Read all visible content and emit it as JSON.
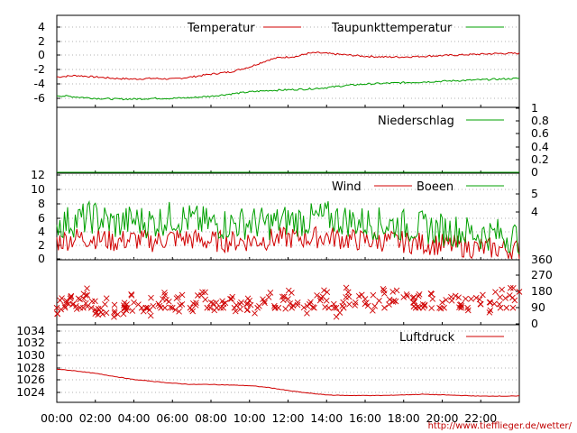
{
  "chart_data": [
    {
      "type": "line",
      "panel": "temperature",
      "ylim": [
        -7,
        5
      ],
      "yticks": [
        "4",
        "2",
        "0",
        "-2",
        "-4",
        "-6"
      ],
      "grid": true,
      "legend_placement": "top",
      "series": [
        {
          "name": "Temperatur",
          "color": "#d00000",
          "x": [
            0,
            1,
            2,
            3,
            4,
            5,
            6,
            7,
            8,
            9,
            10,
            11,
            11.5,
            12,
            12.5,
            13,
            13.5,
            14,
            15,
            16,
            17,
            18,
            19,
            20,
            21,
            22,
            23,
            24
          ],
          "values": [
            -3.0,
            -2.8,
            -3.0,
            -3.2,
            -3.3,
            -3.2,
            -3.3,
            -3.0,
            -2.6,
            -2.3,
            -1.6,
            -0.6,
            -0.3,
            -0.2,
            -0.1,
            0.3,
            0.4,
            0.3,
            0.1,
            -0.1,
            -0.2,
            -0.2,
            -0.1,
            0.0,
            0.1,
            0.2,
            0.3,
            0.3
          ]
        },
        {
          "name": "Taupunkttemperatur",
          "color": "#00a000",
          "x": [
            0,
            1,
            2,
            3,
            4,
            5,
            6,
            7,
            8,
            9,
            10,
            11,
            12,
            13,
            14,
            15,
            16,
            17,
            18,
            19,
            20,
            21,
            22,
            23,
            24
          ],
          "values": [
            -5.6,
            -5.8,
            -6.0,
            -6.1,
            -6.1,
            -6.0,
            -6.0,
            -5.9,
            -5.7,
            -5.4,
            -5.1,
            -4.9,
            -4.8,
            -4.7,
            -4.5,
            -4.2,
            -4.0,
            -3.9,
            -3.8,
            -3.7,
            -3.6,
            -3.5,
            -3.4,
            -3.3,
            -3.2
          ]
        }
      ]
    },
    {
      "type": "line",
      "panel": "precipitation",
      "ylim": [
        0,
        1
      ],
      "yticks_right": [
        "1",
        "0.8",
        "0.6",
        "0.4",
        "0.2",
        "0"
      ],
      "series": [
        {
          "name": "Niederschlag",
          "color": "#00a000",
          "x": [
            0,
            24
          ],
          "values": [
            0,
            0
          ]
        }
      ]
    },
    {
      "type": "line",
      "panel": "wind",
      "ylim": [
        0,
        12
      ],
      "yticks": [
        "12",
        "10",
        "8",
        "6",
        "4",
        "2",
        "0"
      ],
      "yticks_right": [
        "5",
        "4"
      ],
      "series": [
        {
          "name": "Wind",
          "color": "#d00000",
          "x": [
            0,
            1,
            2,
            3,
            4,
            5,
            6,
            7,
            8,
            9,
            10,
            11,
            12,
            13,
            14,
            15,
            16,
            17,
            18,
            19,
            20,
            21,
            22,
            23,
            24
          ],
          "values": [
            2.5,
            3.0,
            3.0,
            2.5,
            2.8,
            2.5,
            3.0,
            2.8,
            2.5,
            2.5,
            2.6,
            2.8,
            3.0,
            3.0,
            3.2,
            2.8,
            2.6,
            2.6,
            2.4,
            2.2,
            2.0,
            1.8,
            1.5,
            1.5,
            1.2
          ]
        },
        {
          "name": "Boeen",
          "color": "#00a000",
          "x": [
            0,
            1,
            2,
            3,
            4,
            5,
            6,
            7,
            8,
            9,
            10,
            11,
            12,
            13,
            14,
            15,
            16,
            17,
            18,
            19,
            20,
            21,
            22,
            23,
            24
          ],
          "values": [
            5.0,
            5.5,
            6.0,
            5.0,
            5.5,
            5.2,
            6.0,
            5.5,
            5.0,
            5.0,
            5.2,
            5.0,
            5.5,
            5.5,
            6.0,
            5.5,
            5.2,
            5.0,
            4.8,
            4.5,
            4.2,
            4.0,
            3.5,
            3.5,
            3.0
          ]
        }
      ]
    },
    {
      "type": "scatter",
      "panel": "wind direction",
      "ylim": [
        0,
        360
      ],
      "yticks_right": [
        "360",
        "270",
        "180",
        "90",
        "0"
      ],
      "marker": "x",
      "series": [
        {
          "color": "#d00000",
          "x": [
            0,
            0.5,
            1,
            1.5,
            2,
            2.5,
            3,
            3.5,
            4,
            4.5,
            5,
            5.5,
            6,
            6.5,
            7,
            7.5,
            8,
            8.5,
            9,
            9.5,
            10,
            10.5,
            11,
            11.5,
            12,
            12.5,
            13,
            13.5,
            14,
            14.5,
            15,
            15.5,
            16,
            16.5,
            17,
            17.5,
            18,
            18.5,
            19,
            19.5,
            20,
            20.5,
            21,
            21.5,
            22,
            22.5,
            23,
            23.5,
            24
          ],
          "values": [
            90,
            130,
            100,
            160,
            80,
            110,
            60,
            90,
            120,
            70,
            100,
            140,
            90,
            110,
            80,
            160,
            120,
            90,
            140,
            110,
            130,
            100,
            150,
            90,
            140,
            120,
            100,
            160,
            130,
            90,
            150,
            120,
            140,
            100,
            170,
            130,
            150,
            120,
            110,
            140,
            120,
            130,
            100,
            140,
            110,
            120,
            150,
            160,
            180
          ]
        }
      ]
    },
    {
      "type": "line",
      "panel": "pressure",
      "ylim": [
        1022,
        1035
      ],
      "yticks": [
        "1034",
        "1032",
        "1030",
        "1028",
        "1026",
        "1024"
      ],
      "series": [
        {
          "name": "Luftdruck",
          "color": "#d00000",
          "x": [
            0,
            1,
            2,
            3,
            4,
            5,
            6,
            7,
            8,
            9,
            10,
            11,
            12,
            13,
            14,
            15,
            16,
            17,
            18,
            19,
            20,
            21,
            22,
            23,
            24
          ],
          "values": [
            1027.8,
            1027.5,
            1027.1,
            1026.6,
            1026.1,
            1025.8,
            1025.5,
            1025.3,
            1025.3,
            1025.2,
            1025.1,
            1024.8,
            1024.3,
            1023.9,
            1023.6,
            1023.5,
            1023.5,
            1023.5,
            1023.6,
            1023.7,
            1023.6,
            1023.5,
            1023.4,
            1023.4,
            1023.4
          ]
        }
      ]
    }
  ],
  "x_axis": {
    "labels": [
      "00:00",
      "02:00",
      "04:00",
      "06:00",
      "08:00",
      "10:00",
      "12:00",
      "14:00",
      "16:00",
      "18:00",
      "20:00",
      "22:00"
    ]
  },
  "footer": {
    "url": "http://www.tiefflieger.de/wetter/"
  }
}
